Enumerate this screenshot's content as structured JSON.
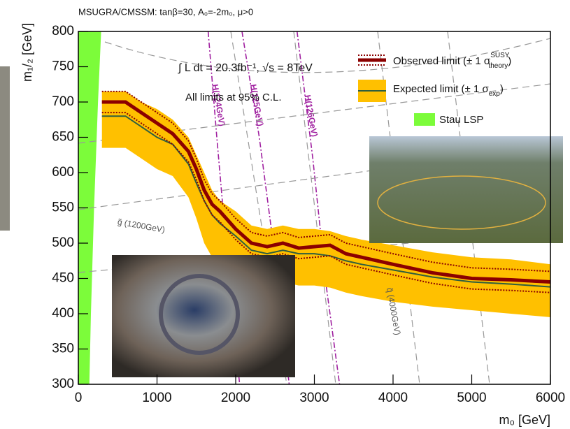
{
  "chart_data": {
    "type": "line",
    "title": "MSUGRA/CMSSM: tanβ=30, A₀=-2m₀, μ>0",
    "xlabel": "m₀ [GeV]",
    "ylabel": "m₁/₂ [GeV]",
    "xlim": [
      0,
      6000
    ],
    "ylim": [
      300,
      800
    ],
    "xticks": [
      0,
      1000,
      2000,
      3000,
      4000,
      5000,
      6000
    ],
    "yticks": [
      300,
      350,
      400,
      450,
      500,
      550,
      600,
      650,
      700,
      750,
      800
    ],
    "annotations": [
      "∫ L dt = 20.3fb⁻¹, √s = 8TeV",
      "All limits at 95% C.L.",
      "g̃ (1200GeV)",
      "q̃ (4000GeV)"
    ],
    "x": [
      300,
      600,
      800,
      1000,
      1200,
      1400,
      1500,
      1600,
      1700,
      1800,
      2000,
      2200,
      2400,
      2600,
      2800,
      3000,
      3200,
      3400,
      3600,
      4000,
      4500,
      5000,
      5500,
      6000
    ],
    "series": [
      {
        "name": "Observed limit (± 1 σ",
        "sup": "SUSY",
        "sub": "theory",
        "end": ")",
        "color": "#8b0000",
        "band_style": "dotted",
        "values": [
          700,
          700,
          685,
          670,
          655,
          630,
          605,
          575,
          555,
          545,
          520,
          500,
          495,
          500,
          493,
          495,
          497,
          485,
          480,
          470,
          458,
          450,
          448,
          445
        ],
        "upper": [
          715,
          715,
          700,
          685,
          670,
          645,
          620,
          590,
          570,
          560,
          535,
          515,
          510,
          515,
          508,
          510,
          512,
          500,
          495,
          485,
          473,
          465,
          463,
          460
        ],
        "lower": [
          685,
          685,
          670,
          655,
          640,
          615,
          590,
          560,
          540,
          530,
          505,
          485,
          480,
          485,
          478,
          480,
          482,
          470,
          465,
          455,
          443,
          435,
          433,
          430
        ]
      },
      {
        "name": "Expected limit (± 1 σ",
        "sub": "exp",
        "end": ")",
        "color": "#2f5f3f",
        "band_color": "#ffc000",
        "band_style": "fill",
        "values": [
          680,
          680,
          665,
          650,
          640,
          612,
          585,
          560,
          540,
          528,
          510,
          490,
          485,
          490,
          485,
          485,
          482,
          475,
          470,
          462,
          452,
          445,
          442,
          438
        ],
        "upper": [
          715,
          715,
          700,
          690,
          675,
          650,
          625,
          600,
          575,
          560,
          545,
          525,
          520,
          525,
          520,
          520,
          517,
          510,
          505,
          497,
          487,
          480,
          477,
          470
        ],
        "lower": [
          635,
          635,
          620,
          605,
          595,
          565,
          535,
          500,
          480,
          470,
          460,
          445,
          440,
          445,
          440,
          440,
          437,
          430,
          425,
          417,
          410,
          405,
          400,
          395
        ]
      }
    ],
    "region": {
      "name": "Stau LSP",
      "color": "#7cfc3a",
      "x": [
        290,
        250,
        200,
        160,
        140
      ],
      "y": [
        800,
        700,
        550,
        400,
        300
      ]
    },
    "higgs": [
      {
        "label": "H(124GeV)",
        "color": "#a020a0",
        "x": [
          1650,
          1760,
          1900,
          2050
        ],
        "y": [
          800,
          650,
          470,
          300
        ]
      },
      {
        "label": "H(125GeV)",
        "color": "#a020a0",
        "x": [
          2080,
          2300,
          2500,
          2680
        ],
        "y": [
          800,
          650,
          480,
          300
        ]
      },
      {
        "label": "H(126GeV)",
        "color": "#a020a0",
        "x": [
          2780,
          2980,
          3150,
          3320
        ],
        "y": [
          800,
          620,
          440,
          300
        ]
      }
    ]
  }
}
